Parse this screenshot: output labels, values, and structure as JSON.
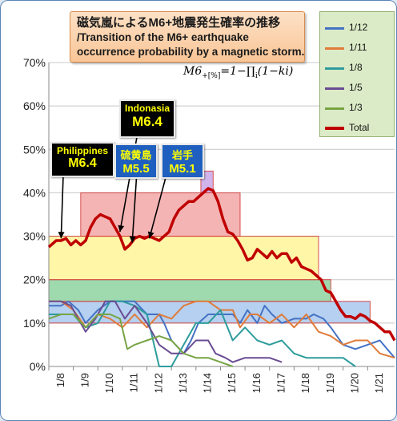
{
  "title": {
    "ja": "磁気嵐によるM6+地震発生確率の推移",
    "en_line1": "/Transition of the M6+ earthquake",
    "en_line2": "occurrence probability by a magnetic storm."
  },
  "formula": {
    "lhs": "M6",
    "unit": "+[%]",
    "rhs": "=1−∏",
    "sub": "i",
    "tail": "(1−ki)"
  },
  "annotations": [
    {
      "name": "Philippines",
      "magnitude": "M6.4",
      "bg": "#000000",
      "name_color": "#ffff00",
      "mag_color": "#ffff00"
    },
    {
      "name": "Indonasia",
      "magnitude": "M6.4",
      "bg": "#000000",
      "name_color": "#ffff00",
      "mag_color": "#ffff00"
    },
    {
      "name": "硫黄島",
      "magnitude": "M5.5",
      "bg": "#1f5fbf",
      "name_color": "#ffff00",
      "mag_color": "#ffff00"
    },
    {
      "name": "岩手",
      "magnitude": "M5.1",
      "bg": "#1f5fbf",
      "name_color": "#ffff00",
      "mag_color": "#ffff00"
    }
  ],
  "colors": {
    "s12": "#4472c4",
    "s11": "#e07b39",
    "s8": "#2e9c9c",
    "s5": "#6a4c93",
    "s3": "#77a444",
    "total": "#c00000",
    "band_red": "#f4a7a7",
    "band_yellow": "#fff59a",
    "band_green": "#8fd3a0",
    "band_blue": "#a9c8ee",
    "band_purple": "#c9a7e8"
  },
  "chart_data": {
    "type": "line",
    "ylim": [
      0,
      70
    ],
    "yticks": [
      "0%",
      "10%",
      "20%",
      "30%",
      "40%",
      "50%",
      "60%",
      "70%"
    ],
    "xlim": [
      7.5,
      21.6
    ],
    "xticks": [
      {
        "pos": 8,
        "label": "1/8"
      },
      {
        "pos": 9,
        "label": "1/9"
      },
      {
        "pos": 10,
        "label": "1/10"
      },
      {
        "pos": 11,
        "label": "1/11"
      },
      {
        "pos": 12,
        "label": "1/12"
      },
      {
        "pos": 13,
        "label": "1/13"
      },
      {
        "pos": 14,
        "label": "1/14"
      },
      {
        "pos": 15,
        "label": "1/15"
      },
      {
        "pos": 16,
        "label": "1/16"
      },
      {
        "pos": 17,
        "label": "1/17"
      },
      {
        "pos": 18,
        "label": "1/18"
      },
      {
        "pos": 19,
        "label": "1/19"
      },
      {
        "pos": 20,
        "label": "1/20"
      },
      {
        "pos": 21,
        "label": "1/21"
      }
    ],
    "bands": [
      {
        "x0": 7.5,
        "x1": 20.6,
        "y0": 10,
        "y1": 15,
        "color": "band_blue"
      },
      {
        "x0": 7.5,
        "x1": 19.0,
        "y0": 15,
        "y1": 20,
        "color": "band_green"
      },
      {
        "x0": 7.5,
        "x1": 18.5,
        "y0": 20,
        "y1": 30,
        "color": "band_yellow"
      },
      {
        "x0": 8.8,
        "x1": 15.3,
        "y0": 30,
        "y1": 40,
        "color": "band_red"
      },
      {
        "x0": 13.7,
        "x1": 14.2,
        "y0": 40,
        "y1": 45,
        "color": "band_purple"
      }
    ],
    "series": [
      {
        "name": "1/12",
        "color": "s12",
        "x": [
          7.5,
          8.0,
          8.3,
          8.7,
          9.0,
          9.5,
          10.0,
          10.5,
          11.0,
          11.5,
          12.0,
          12.2,
          12.5,
          13.0,
          13.3,
          13.6,
          14.0,
          14.5,
          15.0,
          15.3,
          15.6,
          16.0,
          16.3,
          16.6,
          17.0,
          17.5,
          18.0,
          18.3,
          18.7,
          19.0,
          19.5,
          20.0,
          20.5,
          21.0,
          21.6
        ],
        "y": [
          14,
          14,
          15,
          13,
          10,
          13,
          15,
          15,
          15,
          12,
          12,
          10,
          6,
          3,
          6,
          10,
          12,
          12,
          12,
          10,
          13,
          10,
          14,
          12,
          10,
          11,
          11,
          12,
          11,
          9,
          5,
          4,
          5,
          6,
          2
        ]
      },
      {
        "name": "1/11",
        "color": "s11",
        "x": [
          7.5,
          8.0,
          8.5,
          9.0,
          9.5,
          10.0,
          10.5,
          11.0,
          11.5,
          12.0,
          12.5,
          13.0,
          13.5,
          14.0,
          14.5,
          15.0,
          15.3,
          15.7,
          16.0,
          16.5,
          17.0,
          17.5,
          18.0,
          18.5,
          19.0,
          19.5,
          20.0,
          20.5,
          21.0,
          21.6
        ],
        "y": [
          15,
          15,
          13,
          9,
          12,
          11,
          9,
          12,
          9,
          12,
          11,
          14,
          15,
          15,
          13,
          13,
          9,
          12,
          12,
          10,
          12,
          9,
          12,
          8,
          7,
          5,
          6,
          6,
          3,
          2
        ]
      },
      {
        "name": "1/8",
        "color": "s8",
        "x": [
          7.5,
          8.0,
          8.5,
          8.8,
          9.0,
          9.5,
          10.0,
          10.5,
          11.0,
          11.5,
          12.0,
          12.5,
          13.0,
          13.5,
          14.0,
          14.5,
          15.0,
          15.5,
          16.0,
          16.5,
          17.0,
          17.5,
          18.0,
          18.5,
          19.0,
          19.5,
          20.0
        ],
        "y": [
          12,
          12,
          12,
          10,
          9,
          10,
          15,
          15,
          14,
          12,
          0,
          0,
          5,
          10,
          10,
          13,
          6,
          9,
          6,
          5,
          6,
          3,
          2,
          2,
          2,
          2,
          0
        ]
      },
      {
        "name": "1/5",
        "color": "s5",
        "x": [
          7.5,
          8.0,
          8.4,
          8.8,
          9.0,
          9.4,
          9.8,
          10.2,
          10.6,
          11.0,
          11.5,
          12.0,
          12.5,
          13.0,
          13.5,
          14.0,
          14.3,
          14.7,
          15.0,
          15.5,
          16.0,
          16.5,
          17.0
        ],
        "y": [
          15,
          15,
          14,
          10,
          8,
          11,
          15,
          15,
          11,
          14,
          10,
          5,
          3,
          3,
          6,
          6,
          3,
          2,
          1,
          2,
          2,
          2,
          1
        ]
      },
      {
        "name": "1/3",
        "color": "s3",
        "x": [
          7.5,
          8.0,
          8.5,
          9.0,
          9.5,
          10.0,
          10.4,
          10.7,
          11.0,
          11.5,
          12.0,
          12.5,
          13.0,
          13.5,
          14.0,
          14.5,
          15.0
        ],
        "y": [
          11,
          12,
          12,
          9,
          12,
          12,
          11,
          4,
          5,
          6,
          7,
          6,
          3,
          2,
          2,
          1,
          0
        ]
      },
      {
        "name": "Total",
        "color": "total",
        "x": [
          7.5,
          7.8,
          8.0,
          8.2,
          8.4,
          8.6,
          8.8,
          9.0,
          9.2,
          9.4,
          9.6,
          9.8,
          10.0,
          10.2,
          10.4,
          10.6,
          10.8,
          11.0,
          11.2,
          11.4,
          11.6,
          11.8,
          12.0,
          12.2,
          12.4,
          12.6,
          12.8,
          13.0,
          13.2,
          13.4,
          13.6,
          13.8,
          14.0,
          14.2,
          14.4,
          14.6,
          14.8,
          15.0,
          15.2,
          15.4,
          15.6,
          15.8,
          16.0,
          16.2,
          16.4,
          16.6,
          16.8,
          17.0,
          17.2,
          17.4,
          17.6,
          17.8,
          18.0,
          18.2,
          18.4,
          18.6,
          18.8,
          19.0,
          19.2,
          19.4,
          19.6,
          19.8,
          20.0,
          20.2,
          20.4,
          20.6,
          20.8,
          21.0,
          21.2,
          21.4,
          21.6
        ],
        "y": [
          27.5,
          29,
          29,
          29.5,
          28,
          29,
          28,
          29,
          32,
          34,
          35,
          34.5,
          34,
          32,
          30,
          27,
          28,
          29.5,
          30,
          29.5,
          30,
          29.5,
          29,
          30,
          31,
          34,
          36,
          37,
          38,
          38,
          39,
          40,
          41,
          40.5,
          38,
          34,
          31,
          30.5,
          29,
          27,
          24.5,
          25,
          27,
          26,
          25,
          26.5,
          25,
          26,
          26,
          24,
          25,
          23,
          22.5,
          22,
          21,
          20,
          17.5,
          17,
          15,
          13,
          11.5,
          11.5,
          11,
          12,
          11.5,
          10.5,
          10,
          9,
          8,
          8,
          6
        ]
      }
    ]
  }
}
